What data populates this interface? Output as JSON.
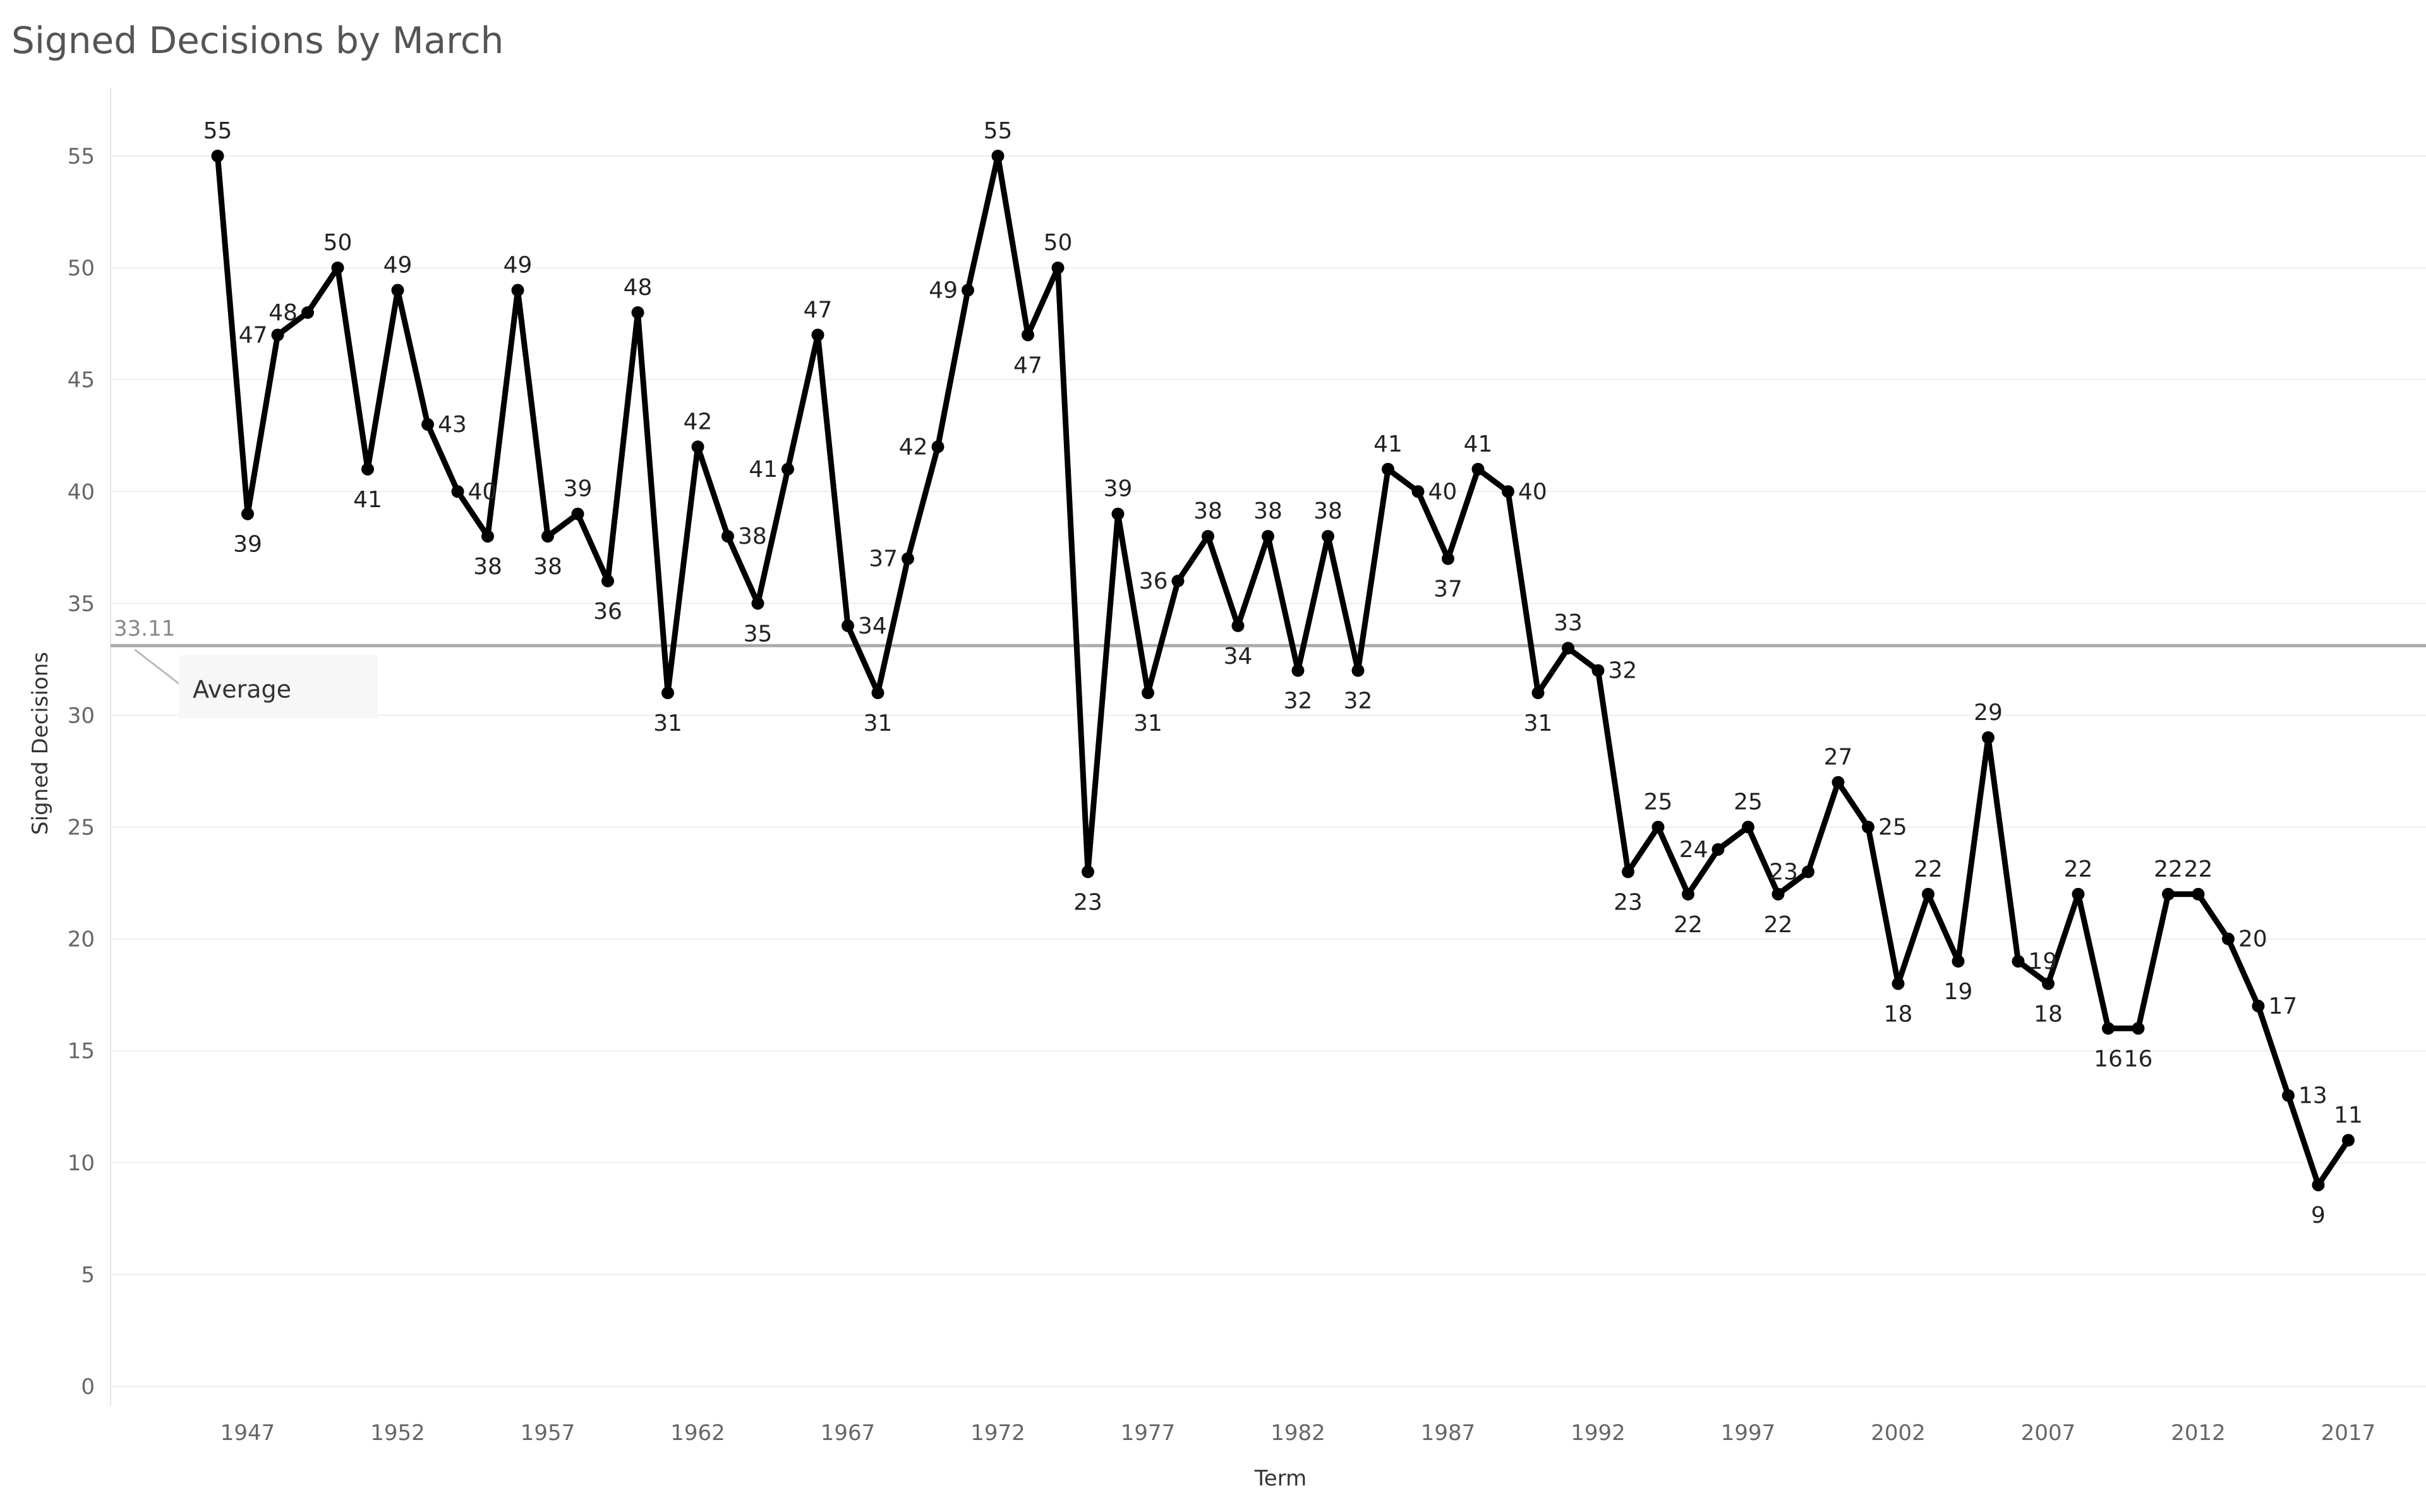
{
  "chart_data": {
    "type": "line",
    "title": "Signed Decisions by March",
    "xlabel": "Term",
    "ylabel": "Signed Decisions",
    "xlim": [
      1941,
      2020
    ],
    "ylim": [
      0,
      58
    ],
    "x_ticks": [
      1947,
      1952,
      1957,
      1962,
      1967,
      1972,
      1977,
      1982,
      1987,
      1992,
      1997,
      2002,
      2007,
      2012,
      2017
    ],
    "y_ticks": [
      0,
      5,
      10,
      15,
      20,
      25,
      30,
      35,
      40,
      45,
      50,
      55
    ],
    "grid": "horizontal",
    "line_color": "#000000",
    "series": [
      {
        "x": [
          1946,
          1947,
          1948,
          1949,
          1950,
          1951,
          1952,
          1953,
          1954,
          1955,
          1956,
          1957,
          1958,
          1959,
          1960,
          1961,
          1962,
          1963,
          1964,
          1965,
          1966,
          1967,
          1968,
          1969,
          1970,
          1971,
          1972,
          1973,
          1974,
          1975,
          1976,
          1977,
          1978,
          1979,
          1980,
          1981,
          1982,
          1983,
          1984,
          1985,
          1986,
          1987,
          1988,
          1989,
          1990,
          1991,
          1992,
          1993,
          1994,
          1995,
          1996,
          1997,
          1998,
          1999,
          2000,
          2001,
          2002,
          2003,
          2004,
          2005,
          2006,
          2007,
          2008,
          2009,
          2010,
          2011,
          2012,
          2013,
          2014,
          2015,
          2016,
          2017
        ],
        "values": [
          55,
          39,
          47,
          48,
          50,
          41,
          49,
          43,
          40,
          38,
          49,
          38,
          39,
          36,
          48,
          31,
          42,
          38,
          35,
          41,
          47,
          34,
          31,
          37,
          42,
          49,
          55,
          47,
          50,
          23,
          39,
          31,
          36,
          38,
          34,
          38,
          32,
          38,
          32,
          41,
          40,
          37,
          41,
          40,
          31,
          33,
          32,
          23,
          25,
          22,
          24,
          25,
          22,
          23,
          27,
          25,
          18,
          22,
          19,
          29,
          19,
          18,
          22,
          16,
          16,
          22,
          22,
          20,
          17,
          13,
          9,
          11
        ],
        "labels": [
          "55",
          "39",
          "47",
          "48",
          "50",
          "41",
          "49",
          "43",
          "40",
          "38",
          "49",
          "38",
          "39",
          "36",
          "48",
          "31",
          "42",
          "38",
          "35",
          "41",
          "47",
          "34",
          "31",
          "37",
          "42",
          "49",
          "55",
          "47",
          "50",
          "23",
          "39",
          "31",
          "36",
          "38",
          "34",
          "38",
          "32",
          "38",
          "32",
          "41",
          "40",
          "37",
          "41",
          "40",
          "31",
          "33",
          "32",
          "23",
          "25",
          "22",
          "24",
          "25",
          "22",
          "23",
          "27",
          "25",
          "18",
          "22",
          "19",
          "29",
          "19",
          "18",
          "22",
          "16",
          "16",
          "22",
          "22",
          "20",
          "17",
          "13",
          "9",
          "11"
        ]
      }
    ],
    "reference_line": {
      "name": "Average",
      "value": 33.11,
      "value_label": "33.11",
      "color": "#aaaaaa"
    }
  }
}
